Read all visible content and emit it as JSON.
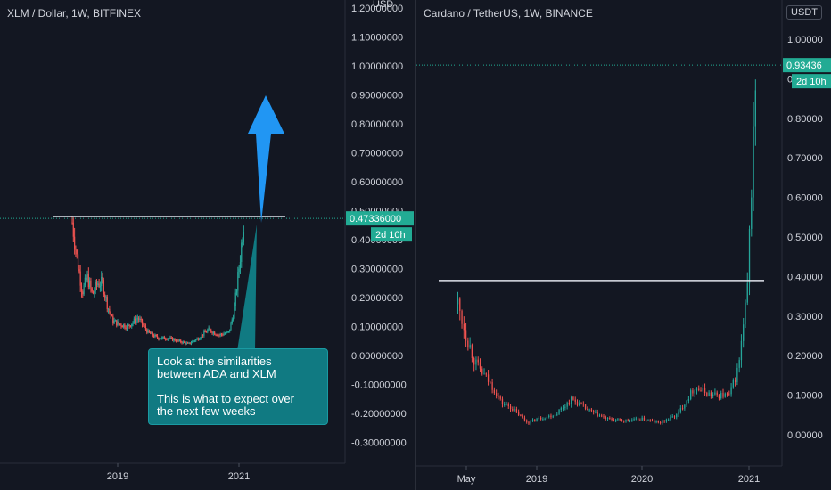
{
  "left_chart": {
    "title": "XLM / Dollar, 1W, BITFINEX",
    "currency_label": "USD",
    "last_price": "0.47336000",
    "countdown": "2d 10h",
    "y_ticks": [
      "1.20000000",
      "1.10000000",
      "1.00000000",
      "0.90000000",
      "0.80000000",
      "0.70000000",
      "0.60000000",
      "0.50000000",
      "0.40000000",
      "0.30000000",
      "0.20000000",
      "0.10000000",
      "0.00000000",
      "-0.10000000",
      "-0.20000000",
      "-0.30000000"
    ],
    "x_ticks": [
      "2019",
      "2021"
    ],
    "callout": {
      "line1": "Look at the similarities",
      "line2": "between ADA and XLM",
      "line3": "This is what to expect over",
      "line4": "the next few weeks"
    }
  },
  "right_chart": {
    "title": "Cardano / TetherUS, 1W, BINANCE",
    "currency_label": "USDT",
    "last_price": "0.93436",
    "countdown": "2d 10h",
    "y_ticks": [
      "1.00000",
      "0.90000",
      "0.80000",
      "0.70000",
      "0.60000",
      "0.50000",
      "0.40000",
      "0.30000",
      "0.20000",
      "0.10000",
      "0.00000"
    ],
    "x_ticks": [
      "May",
      "2019",
      "2020",
      "2021"
    ]
  },
  "colors": {
    "up": "#26a69a",
    "down": "#ef5350",
    "accent": "#22ab94",
    "arrow": "#2196f3",
    "background": "#131722"
  },
  "chart_data": [
    {
      "type": "candlestick",
      "title": "XLM / Dollar, 1W, BITFINEX",
      "ylabel": "USD",
      "ylim": [
        -0.35,
        1.22
      ],
      "x_ticks": [
        "2019",
        "2021"
      ],
      "resistance": 0.48,
      "last_price": 0.47336,
      "close_path": [
        [
          "2018-04",
          0.46
        ],
        [
          "2018-05",
          0.33
        ],
        [
          "2018-06",
          0.22
        ],
        [
          "2018-07",
          0.27
        ],
        [
          "2018-08",
          0.21
        ],
        [
          "2018-09",
          0.25
        ],
        [
          "2018-10",
          0.25
        ],
        [
          "2018-11",
          0.17
        ],
        [
          "2018-12",
          0.12
        ],
        [
          "2019-01",
          0.11
        ],
        [
          "2019-03",
          0.1
        ],
        [
          "2019-05",
          0.13
        ],
        [
          "2019-07",
          0.08
        ],
        [
          "2019-09",
          0.06
        ],
        [
          "2019-11",
          0.06
        ],
        [
          "2020-01",
          0.05
        ],
        [
          "2020-03",
          0.04
        ],
        [
          "2020-05",
          0.06
        ],
        [
          "2020-07",
          0.09
        ],
        [
          "2020-09",
          0.07
        ],
        [
          "2020-11",
          0.08
        ],
        [
          "2020-12",
          0.15
        ],
        [
          "2021-01",
          0.3
        ],
        [
          "2021-02",
          0.47
        ]
      ]
    },
    {
      "type": "candlestick",
      "title": "Cardano / TetherUS, 1W, BINANCE",
      "ylabel": "USDT",
      "ylim": [
        -0.02,
        1.05
      ],
      "x_ticks": [
        "May",
        "2019",
        "2020",
        "2021"
      ],
      "resistance": 0.39,
      "last_price": 0.93436,
      "close_path": [
        [
          "2018-04",
          0.33
        ],
        [
          "2018-05",
          0.25
        ],
        [
          "2018-06",
          0.18
        ],
        [
          "2018-07",
          0.15
        ],
        [
          "2018-08",
          0.12
        ],
        [
          "2018-09",
          0.08
        ],
        [
          "2018-10",
          0.07
        ],
        [
          "2018-11",
          0.05
        ],
        [
          "2018-12",
          0.03
        ],
        [
          "2019-01",
          0.04
        ],
        [
          "2019-03",
          0.05
        ],
        [
          "2019-05",
          0.09
        ],
        [
          "2019-07",
          0.06
        ],
        [
          "2019-09",
          0.04
        ],
        [
          "2019-11",
          0.035
        ],
        [
          "2020-01",
          0.04
        ],
        [
          "2020-03",
          0.03
        ],
        [
          "2020-05",
          0.05
        ],
        [
          "2020-07",
          0.12
        ],
        [
          "2020-09",
          0.1
        ],
        [
          "2020-11",
          0.1
        ],
        [
          "2020-12",
          0.17
        ],
        [
          "2021-01",
          0.35
        ],
        [
          "2021-02",
          0.93
        ]
      ]
    }
  ]
}
